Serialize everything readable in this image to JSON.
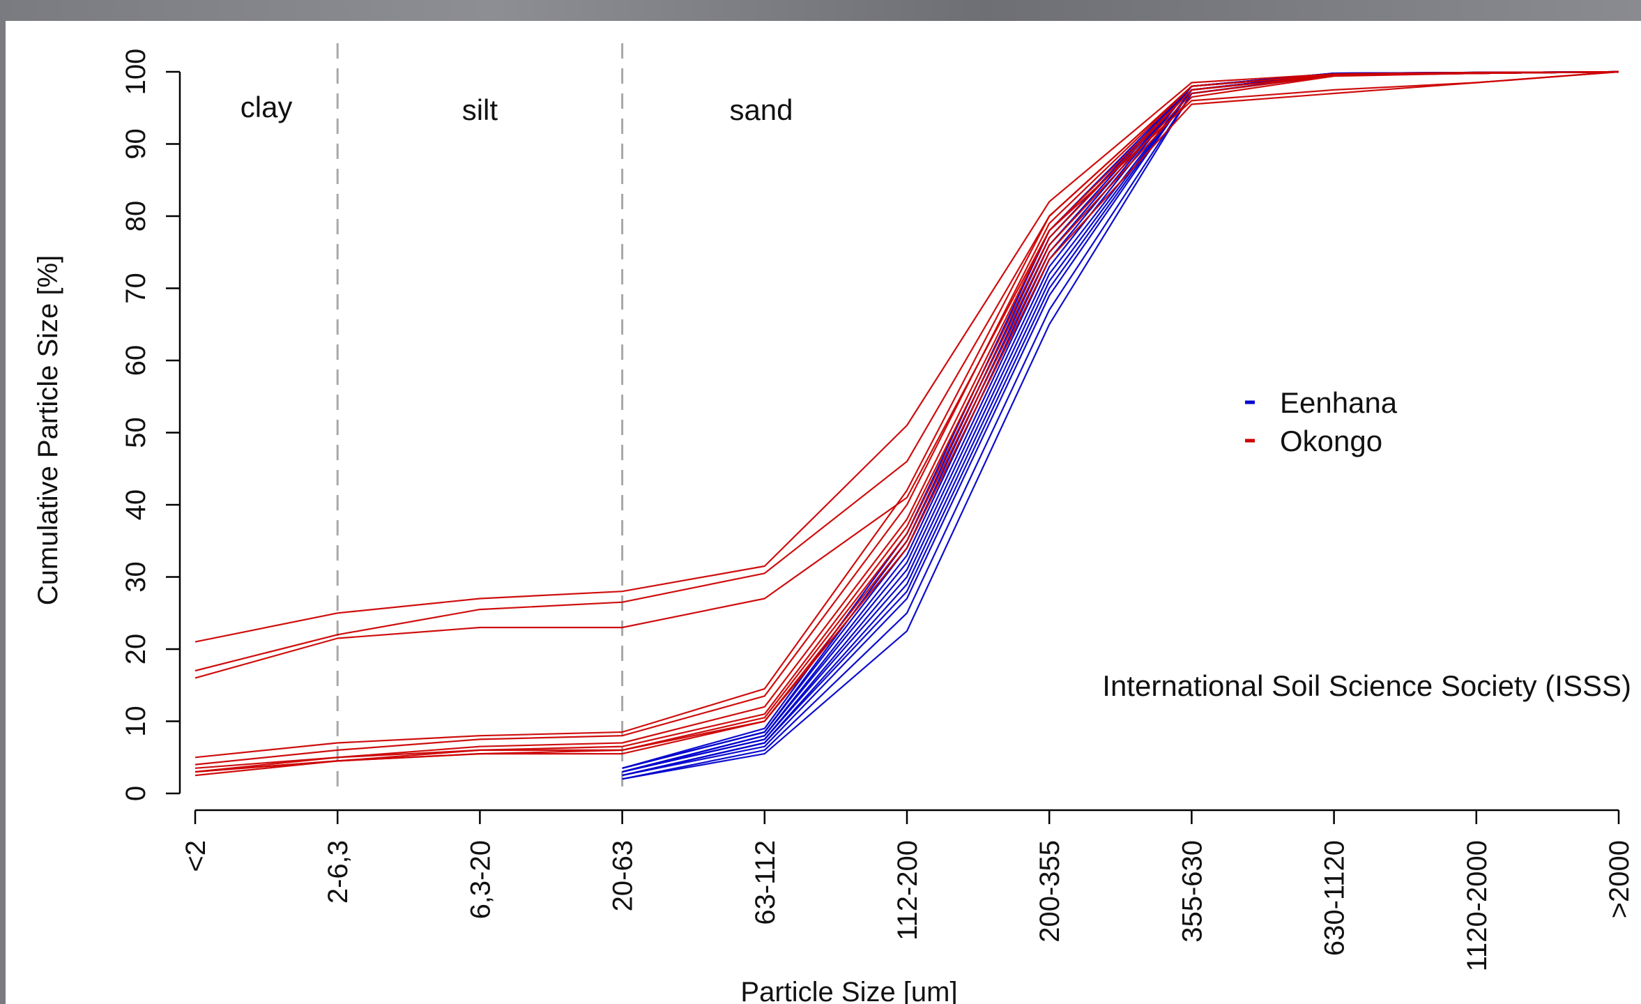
{
  "chart_data": {
    "type": "line",
    "title": "",
    "xlabel": "Particle Size [um]",
    "ylabel": "Cumulative Particle Size [%]",
    "ylim": [
      0,
      100
    ],
    "yticks": [
      0,
      10,
      20,
      30,
      40,
      50,
      60,
      70,
      80,
      90,
      100
    ],
    "categories": [
      "<2",
      "2-6,3",
      "6,3-20",
      "20-63",
      "63-112",
      "112-200",
      "200-355",
      "355-630",
      "630-1120",
      "1120-2000",
      ">2000"
    ],
    "regions": [
      {
        "label": "clay",
        "boundary_after": "2-6,3"
      },
      {
        "label": "silt",
        "boundary_after": "20-63"
      },
      {
        "label": "sand"
      }
    ],
    "note": "International Soil Science Society (ISSS)",
    "legend": {
      "placement": "right",
      "entries": [
        {
          "label": "Eenhana",
          "color": "#0000cc"
        },
        {
          "label": "Okongo",
          "color": "#cc0000"
        }
      ]
    },
    "series_groups": [
      {
        "name": "Eenhana",
        "color": "#0000cc",
        "start_index": 3,
        "lines": [
          [
            2,
            5.5,
            22.5,
            65,
            97,
            99.5,
            99.8,
            100
          ],
          [
            2,
            6,
            25,
            67,
            97,
            99.6,
            99.8,
            100
          ],
          [
            2.5,
            6.5,
            27,
            69,
            97.5,
            99.6,
            99.8,
            100
          ],
          [
            2.5,
            7,
            28,
            70,
            97.5,
            99.7,
            99.8,
            100
          ],
          [
            2.5,
            7,
            29,
            71,
            97.5,
            99.7,
            99.8,
            100
          ],
          [
            3,
            7.5,
            30,
            72,
            97.5,
            99.7,
            99.9,
            100
          ],
          [
            3,
            7.5,
            31,
            73,
            98,
            99.7,
            99.9,
            100
          ],
          [
            3,
            8,
            32,
            74,
            98,
            99.7,
            99.9,
            100
          ],
          [
            3,
            8,
            33,
            75,
            98,
            99.8,
            99.9,
            100
          ],
          [
            3.5,
            8.5,
            34,
            76,
            98,
            99.8,
            99.9,
            100
          ],
          [
            3.5,
            8.5,
            35,
            77,
            98,
            99.8,
            99.9,
            100
          ],
          [
            3.5,
            9,
            36,
            78,
            98,
            99.8,
            99.9,
            100
          ]
        ]
      },
      {
        "name": "Okongo",
        "color": "#cc0000",
        "start_index": 0,
        "lines": [
          [
            21,
            25,
            27,
            28,
            31.5,
            51,
            82,
            98.5,
            99.7,
            99.9,
            100
          ],
          [
            17,
            22,
            25.5,
            26.5,
            30.5,
            46,
            80,
            98,
            99.6,
            99.9,
            100
          ],
          [
            16,
            21.5,
            23,
            23,
            27,
            41,
            78,
            96,
            97.5,
            98.5,
            100
          ],
          [
            5,
            7,
            8,
            8.5,
            14.5,
            42,
            80,
            98,
            99.6,
            99.8,
            100
          ],
          [
            4,
            6,
            7.5,
            8,
            13.5,
            40,
            79,
            98,
            99.6,
            99.8,
            100
          ],
          [
            3.5,
            5,
            6.5,
            7,
            12,
            38,
            78,
            97.5,
            99.5,
            99.8,
            100
          ],
          [
            3,
            5,
            6,
            6.5,
            11,
            37,
            77,
            97.5,
            99.5,
            99.8,
            100
          ],
          [
            3,
            4.5,
            6,
            6,
            10.5,
            36,
            76,
            97,
            99.5,
            99.8,
            100
          ],
          [
            3,
            4.5,
            5.5,
            6,
            10,
            35,
            75,
            96.5,
            99.4,
            99.8,
            100
          ],
          [
            2.5,
            4.5,
            5.5,
            5.5,
            10,
            34,
            74,
            95.5,
            97,
            98.5,
            100
          ]
        ]
      }
    ]
  }
}
